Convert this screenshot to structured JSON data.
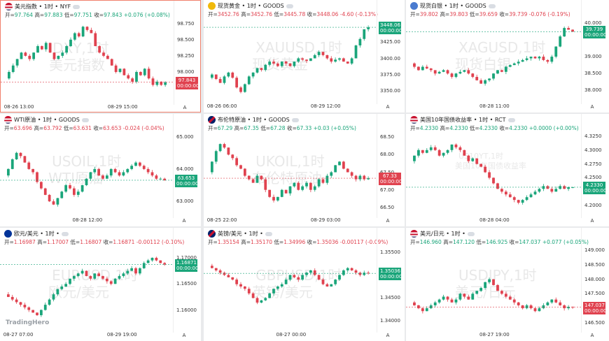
{
  "brand": "TradingHero",
  "panels": [
    {
      "title": "美元指数 • 1时 • NYF",
      "flag": "us",
      "open": "97.764",
      "high": "97.883",
      "low": "97.751",
      "close": "97.843",
      "chg": "+0.076 (+0.08%)",
      "dir": "up",
      "wm1": "DXY,1时",
      "wm2": "美元指数",
      "ticks": [
        "98.750",
        "98.500",
        "98.250",
        "98.000",
        "97.750"
      ],
      "price": "97.843",
      "countdown": "00:00:00",
      "box_color": "#e0424f",
      "xlabels": [
        "08-26 13:00",
        "08-29 15:00"
      ],
      "active": true,
      "ymin": 97.6,
      "ymax": 98.8,
      "path": [
        97.9,
        98.0,
        98.1,
        98.2,
        98.3,
        98.25,
        98.2,
        98.3,
        98.4,
        98.35,
        98.45,
        98.3,
        98.2,
        98.25,
        98.3,
        98.4,
        98.5,
        98.6,
        98.55,
        98.7,
        98.65,
        98.6,
        98.4,
        98.3,
        98.25,
        98.2,
        98.1,
        98.0,
        98.05,
        97.95,
        97.9,
        97.85,
        98.0,
        97.95,
        98.05,
        97.9,
        97.8,
        97.85,
        97.8,
        97.84
      ]
    },
    {
      "title": "现货黄金 • 1时 • GOODS",
      "flag": "gold",
      "open": "3452.76",
      "high": "3452.76",
      "low": "3445.78",
      "close": "3448.06",
      "chg": "-4.60 (-0.13%)",
      "dir": "dn",
      "wm1": "XAUUSD,1时",
      "wm2": "现货黄金",
      "ticks": [
        "3450.00",
        "3425.00",
        "3400.00",
        "3375.00",
        "3350.00"
      ],
      "price": "3448.06",
      "countdown": "00:00:00",
      "box_color": "#1aa57a",
      "xlabels": [
        "08-26 06:00",
        "08-29 12:00"
      ],
      "active": false,
      "ymin": 3340,
      "ymax": 3460,
      "path": [
        3370,
        3375,
        3368,
        3362,
        3372,
        3378,
        3370,
        3355,
        3348,
        3360,
        3372,
        3378,
        3385,
        3382,
        3390,
        3395,
        3392,
        3388,
        3395,
        3392,
        3388,
        3395,
        3400,
        3398,
        3396,
        3400,
        3405,
        3410,
        3405,
        3400,
        3395,
        3398,
        3400,
        3395,
        3392,
        3400,
        3420,
        3430,
        3445,
        3448
      ]
    },
    {
      "title": "现货白银 • 1时 • GOODS",
      "flag": "silver",
      "open": "39.802",
      "high": "39.803",
      "low": "39.659",
      "close": "39.739",
      "chg": "-0.076 (-0.19%)",
      "dir": "dn",
      "wm1": "XAGUSD,1时",
      "wm2": "现货白银",
      "ticks": [
        "40.000",
        "39.000",
        "38.500",
        "38.000"
      ],
      "price": "39.739",
      "countdown": "00:00:00",
      "box_color": "#1aa57a",
      "xlabels": [
        "08-28 11:00"
      ],
      "active": false,
      "ymin": 37.8,
      "ymax": 40.1,
      "path": [
        38.8,
        38.7,
        38.6,
        38.7,
        38.65,
        38.6,
        38.5,
        38.55,
        38.6,
        38.5,
        38.4,
        38.5,
        38.55,
        38.6,
        38.5,
        38.4,
        38.3,
        38.2,
        38.3,
        38.35,
        38.5,
        38.6,
        38.55,
        38.7,
        38.75,
        38.8,
        38.85,
        38.9,
        38.95,
        39.0,
        38.95,
        39.0,
        38.9,
        38.85,
        39.0,
        39.3,
        39.6,
        39.85,
        39.8,
        39.74
      ]
    },
    {
      "title": "WTI原油 • 1时 • GOODS",
      "flag": "us",
      "open": "63.696",
      "high": "63.792",
      "low": "63.631",
      "close": "63.653",
      "chg": "-0.024 (-0.04%)",
      "dir": "dn",
      "wm1": "USOIL,1时",
      "wm2": "WTI原油",
      "ticks": [
        "65.000",
        "64.000",
        "63.000"
      ],
      "price": "63.653",
      "countdown": "00:00:00",
      "box_color": "#1aa57a",
      "xlabels": [
        "08-28 12:00"
      ],
      "active": false,
      "ymin": 62.7,
      "ymax": 65.1,
      "path": [
        63.8,
        64.0,
        64.3,
        64.5,
        64.4,
        64.2,
        64.0,
        63.9,
        63.6,
        63.4,
        63.2,
        63.0,
        62.9,
        63.1,
        63.3,
        63.5,
        63.4,
        63.2,
        63.3,
        63.5,
        63.7,
        63.9,
        64.0,
        63.8,
        63.7,
        63.8,
        64.0,
        63.9,
        63.8,
        63.9,
        64.0,
        64.1,
        64.2,
        64.1,
        64.0,
        63.9,
        63.8,
        63.7,
        63.7,
        63.65
      ]
    },
    {
      "title": "布伦特原油 • 1时 • GOODS",
      "flag": "uk",
      "open": "67.29",
      "high": "67.35",
      "low": "67.28",
      "close": "67.33",
      "chg": "+0.03 (+0.05%)",
      "dir": "up",
      "wm1": "UKOIL,1时",
      "wm2": "布伦特原油",
      "ticks": [
        "68.50",
        "68.00",
        "67.50",
        "67.00",
        "66.50"
      ],
      "price": "67.33",
      "countdown": "00:00:00",
      "box_color": "#e0424f",
      "xlabels": [
        "08-25 22:00",
        "08-29 03:00"
      ],
      "active": false,
      "ymin": 66.4,
      "ymax": 68.6,
      "path": [
        67.5,
        67.8,
        68.1,
        68.3,
        68.2,
        68.0,
        67.9,
        67.7,
        67.6,
        67.4,
        67.3,
        67.2,
        67.4,
        67.3,
        67.0,
        66.8,
        66.7,
        66.8,
        67.0,
        66.9,
        67.1,
        67.2,
        67.0,
        67.1,
        67.2,
        67.0,
        67.1,
        67.3,
        67.2,
        67.4,
        67.5,
        67.7,
        67.8,
        67.6,
        67.5,
        67.4,
        67.3,
        67.4,
        67.3,
        67.33
      ]
    },
    {
      "title": "美国10年国债收益率 • 1时 • RCT",
      "flag": "us",
      "open": "4.2330",
      "high": "4.2330",
      "low": "4.2330",
      "close": "4.2330",
      "chg": "+0.0000 (+0.00%)",
      "dir": "up",
      "wm1": "US10YT,1时",
      "wm2": "美国10年国债收益率",
      "small": true,
      "ticks": [
        "4.3250",
        "4.3000",
        "4.2750",
        "4.2500",
        "4.2000"
      ],
      "price": "4.2330",
      "countdown": "00:00:00",
      "box_color": "#1aa57a",
      "xlabels": [
        "08-28 04:00"
      ],
      "active": false,
      "ymin": 4.19,
      "ymax": 4.33,
      "path": [
        4.28,
        4.29,
        4.3,
        4.295,
        4.3,
        4.305,
        4.3,
        4.29,
        4.295,
        4.3,
        4.31,
        4.305,
        4.3,
        4.29,
        4.28,
        4.285,
        4.275,
        4.27,
        4.26,
        4.25,
        4.24,
        4.23,
        4.225,
        4.22,
        4.215,
        4.21,
        4.205,
        4.21,
        4.215,
        4.22,
        4.225,
        4.23,
        4.235,
        4.23,
        4.225,
        4.23,
        4.235,
        4.23,
        4.233,
        4.233
      ]
    },
    {
      "title": "欧元/美元 • 1时 •",
      "flag": "eu",
      "open": "1.16987",
      "high": "1.17007",
      "low": "1.16807",
      "close": "1.16871",
      "chg": "-0.00112 (-0.10%)",
      "dir": "dn",
      "wm1": "EURUSD,1时",
      "wm2": "欧元/美元",
      "ticks": [
        "1.17000",
        "1.16500",
        "1.16000"
      ],
      "price": "1.16871",
      "countdown": "00:00:00",
      "box_color": "#1aa57a",
      "xlabels": [
        "08-27 07:00",
        "08-29 19:00"
      ],
      "active": false,
      "ymin": 1.157,
      "ymax": 1.172,
      "path": [
        1.163,
        1.1625,
        1.162,
        1.1615,
        1.161,
        1.1605,
        1.16,
        1.1595,
        1.159,
        1.16,
        1.161,
        1.162,
        1.163,
        1.164,
        1.1645,
        1.165,
        1.166,
        1.1665,
        1.167,
        1.1675,
        1.1665,
        1.166,
        1.167,
        1.1665,
        1.166,
        1.1655,
        1.165,
        1.166,
        1.1665,
        1.167,
        1.1675,
        1.168,
        1.167,
        1.168,
        1.169,
        1.1695,
        1.17,
        1.1695,
        1.169,
        1.1687
      ]
    },
    {
      "title": "英镑/美元 • 1时 •",
      "flag": "uk",
      "open": "1.35154",
      "high": "1.35170",
      "low": "1.34996",
      "close": "1.35036",
      "chg": "-0.00117 (-0.09%)",
      "dir": "dn",
      "wm1": "GBPUSD,1时",
      "wm2": "英镑/美元",
      "ticks": [
        "1.35500",
        "1.35000",
        "1.34500",
        "1.34000"
      ],
      "price": "1.35036",
      "countdown": "00:00:00",
      "box_color": "#1aa57a",
      "xlabels": [
        "08-27 00:00"
      ],
      "active": false,
      "ymin": 1.339,
      "ymax": 1.356,
      "path": [
        1.352,
        1.3515,
        1.351,
        1.3505,
        1.35,
        1.3495,
        1.349,
        1.348,
        1.3475,
        1.347,
        1.346,
        1.345,
        1.344,
        1.3445,
        1.345,
        1.346,
        1.347,
        1.3475,
        1.348,
        1.349,
        1.35,
        1.3495,
        1.349,
        1.35,
        1.3505,
        1.351,
        1.35,
        1.349,
        1.348,
        1.3475,
        1.348,
        1.349,
        1.35,
        1.351,
        1.3515,
        1.351,
        1.3505,
        1.35,
        1.3505,
        1.3504
      ]
    },
    {
      "title": "美元/日元 • 1时 •",
      "flag": "us",
      "open": "146.960",
      "high": "147.120",
      "low": "146.925",
      "close": "147.037",
      "chg": "+0.077 (+0.05%)",
      "dir": "up",
      "wm1": "USDJPY,1时",
      "wm2": "美元/日元",
      "ticks": [
        "149.000",
        "148.500",
        "148.000",
        "147.500",
        "147.000",
        "146.500"
      ],
      "price": "147.037",
      "countdown": "00:00:00",
      "box_color": "#e0424f",
      "xlabels": [
        "08-27 19:00"
      ],
      "active": false,
      "ymin": 146.4,
      "ymax": 149.1,
      "path": [
        147.2,
        147.1,
        147.0,
        146.9,
        147.0,
        147.1,
        147.2,
        147.3,
        147.4,
        147.3,
        147.2,
        147.3,
        147.5,
        147.4,
        147.3,
        147.5,
        147.6,
        147.7,
        147.9,
        148.0,
        147.8,
        147.6,
        147.5,
        147.4,
        147.3,
        147.2,
        147.1,
        147.0,
        147.1,
        147.0,
        146.9,
        147.0,
        147.1,
        147.2,
        147.3,
        147.2,
        147.1,
        147.0,
        147.05,
        147.04
      ]
    }
  ]
}
